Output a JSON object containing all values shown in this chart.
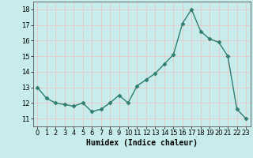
{
  "x": [
    0,
    1,
    2,
    3,
    4,
    5,
    6,
    7,
    8,
    9,
    10,
    11,
    12,
    13,
    14,
    15,
    16,
    17,
    18,
    19,
    20,
    21,
    22,
    23
  ],
  "y": [
    13.0,
    12.3,
    12.0,
    11.9,
    11.8,
    12.0,
    11.45,
    11.6,
    12.0,
    12.5,
    12.0,
    13.1,
    13.5,
    13.9,
    14.5,
    15.1,
    17.1,
    18.0,
    16.6,
    16.1,
    15.9,
    15.0,
    11.6,
    11.0
  ],
  "xlabel": "Humidex (Indice chaleur)",
  "xlim": [
    -0.5,
    23.5
  ],
  "ylim": [
    10.5,
    18.5
  ],
  "yticks": [
    11,
    12,
    13,
    14,
    15,
    16,
    17,
    18
  ],
  "xticks": [
    0,
    1,
    2,
    3,
    4,
    5,
    6,
    7,
    8,
    9,
    10,
    11,
    12,
    13,
    14,
    15,
    16,
    17,
    18,
    19,
    20,
    21,
    22,
    23
  ],
  "line_color": "#2e7d6e",
  "marker": "D",
  "marker_size": 2.5,
  "bg_color": "#c8ecec",
  "grid_color": "#e8c8c8",
  "xlabel_fontsize": 7,
  "tick_fontsize": 6,
  "line_width": 1.0
}
